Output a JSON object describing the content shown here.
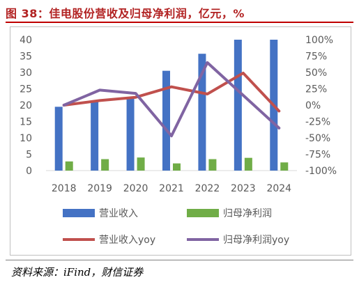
{
  "title": "图 38：佳电股份营收及归母净利润，亿元，%",
  "source": "资料来源：iFind，财信证券",
  "chart_data": {
    "type": "bar",
    "categories": [
      "2018",
      "2019",
      "2020",
      "2021",
      "2022",
      "2023",
      "2024"
    ],
    "series": [
      {
        "name": "营业收入",
        "kind": "bar",
        "axis": "left",
        "color": "#4472c4",
        "values": [
          19.5,
          21.0,
          22.5,
          30.5,
          35.7,
          40.0,
          40.0
        ]
      },
      {
        "name": "归母净利润",
        "kind": "bar",
        "axis": "left",
        "color": "#70ad47",
        "values": [
          2.8,
          3.5,
          4.0,
          2.2,
          3.5,
          3.9,
          2.5
        ]
      },
      {
        "name": "营业收入yoy",
        "kind": "line",
        "axis": "right",
        "color": "#c0504d",
        "values": [
          0,
          7,
          12,
          28,
          17,
          49,
          -9
        ]
      },
      {
        "name": "归母净利润yoy",
        "kind": "line",
        "axis": "right",
        "color": "#8064a2",
        "values": [
          0,
          23,
          18,
          -47,
          65,
          15,
          -35
        ]
      }
    ],
    "y_left": {
      "min": 0,
      "max": 40,
      "ticks": [
        "0",
        "5",
        "10",
        "15",
        "20",
        "25",
        "30",
        "35",
        "40"
      ]
    },
    "y_right": {
      "min": -100,
      "max": 100,
      "ticks": [
        "-100%",
        "-75%",
        "-50%",
        "-25%",
        "0%",
        "25%",
        "50%",
        "75%",
        "100%"
      ]
    },
    "grid": false,
    "legend_position": "bottom"
  }
}
